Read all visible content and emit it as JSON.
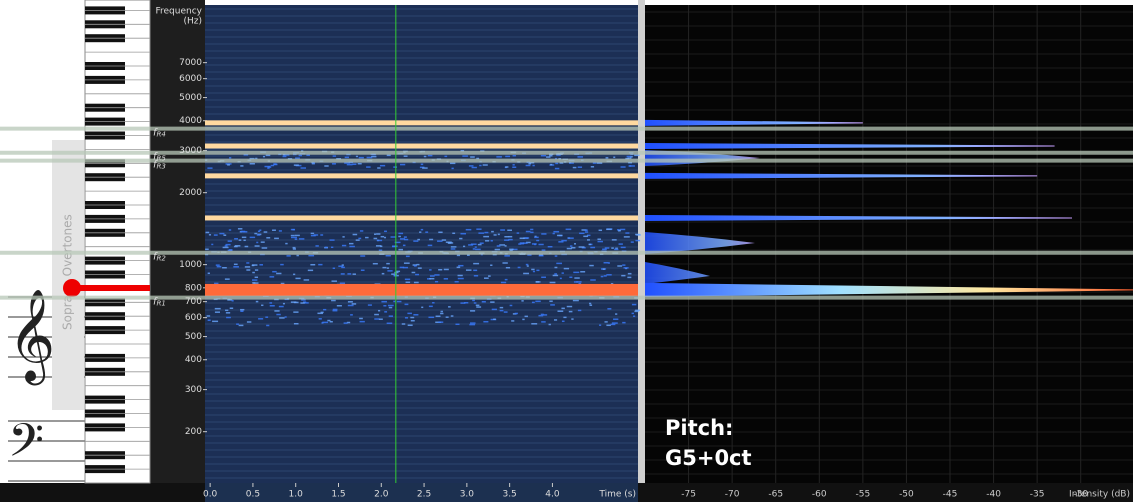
{
  "frequency_axis": {
    "title": [
      "Frequency",
      "(Hz)"
    ],
    "lim": [
      122,
      12200
    ],
    "ticks": [
      200,
      300,
      400,
      500,
      600,
      700,
      800,
      1000,
      2000,
      3000,
      4000,
      5000,
      6000,
      7000
    ]
  },
  "time_axis": {
    "title": "Time (s)",
    "lim": [
      -0.06,
      5.0
    ],
    "ticks": [
      {
        "value": 0,
        "label": "0.0"
      },
      0.5,
      {
        "value": 1,
        "label": "1.0"
      },
      1.5,
      {
        "value": 2,
        "label": "2.0"
      },
      2.5,
      {
        "value": 3,
        "label": "3.0"
      },
      3.5,
      {
        "value": 4,
        "label": "4.0"
      }
    ]
  },
  "intensity_axis": {
    "title": "Intensity (dB)",
    "lim": [
      -80,
      -24
    ],
    "ticks": [
      -75,
      -70,
      -65,
      -60,
      -55,
      -50,
      -45,
      -40,
      -35,
      -30
    ]
  },
  "cursor_time": 2.17,
  "resonances": [
    {
      "symbol": "f",
      "sub": "R1",
      "freq": 728
    },
    {
      "symbol": "f",
      "sub": "R2",
      "freq": 1122
    },
    {
      "symbol": "f",
      "sub": "R3",
      "freq": 2723
    },
    {
      "symbol": "f",
      "sub": "R5",
      "freq": 2940
    },
    {
      "symbol": "f",
      "sub": "R4",
      "freq": 3706
    }
  ],
  "harmonics": [
    {
      "freq": 784,
      "intensity": -24
    },
    {
      "freq": 1568,
      "intensity": -31
    },
    {
      "freq": 2352,
      "intensity": -35
    },
    {
      "freq": 3136,
      "intensity": -33
    },
    {
      "freq": 3920,
      "intensity": -55
    }
  ],
  "pitch": {
    "label": "Pitch:",
    "value": "G5+0ct"
  },
  "sidebar": {
    "caption": "Soprano Overtones",
    "treble_clef": "𝄞",
    "bass_clef": "𝄢"
  }
}
